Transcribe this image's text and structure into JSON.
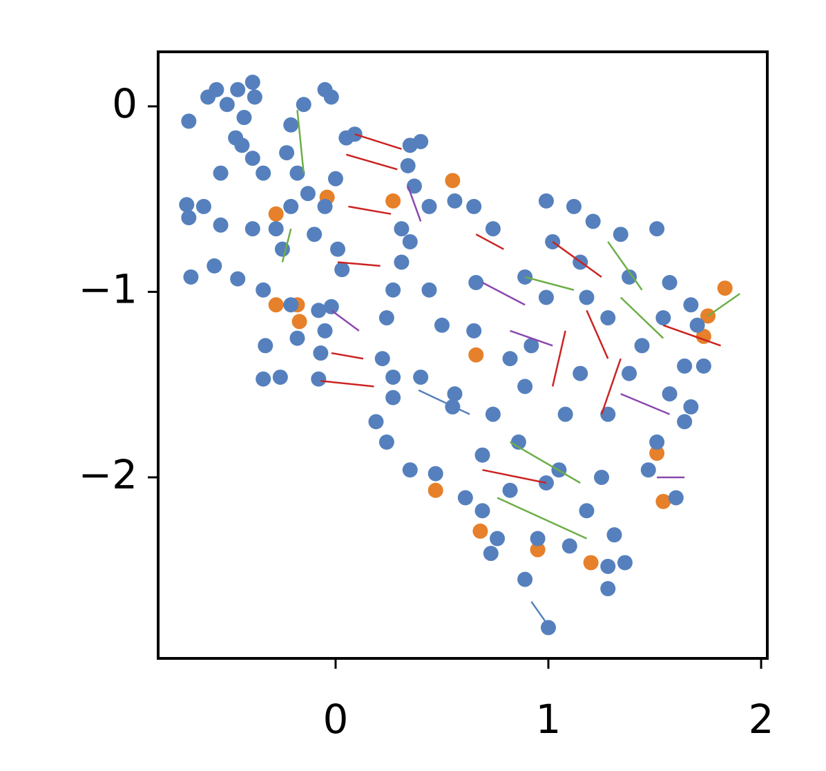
{
  "chart_data": {
    "type": "scatter",
    "xlim": [
      -0.834,
      2.029
    ],
    "ylim": [
      -2.976,
      0.294
    ],
    "xticks": [
      0,
      1,
      2
    ],
    "yticks": [
      {
        "value": -2,
        "label": "−2"
      },
      {
        "value": -1,
        "label": "−1"
      },
      0
    ],
    "series": [
      {
        "color": "#e6802a",
        "x": [
          -0.28,
          -0.04,
          0.55,
          0.27,
          -0.18,
          -0.28,
          -0.17,
          1.83,
          1.75,
          1.73,
          0.66,
          0.47,
          0.68,
          0.95,
          1.2,
          1.51,
          1.54
        ],
        "values": [
          -0.58,
          -0.49,
          -0.4,
          -0.51,
          -1.07,
          -1.07,
          -1.16,
          -0.98,
          -1.13,
          -1.24,
          -1.34,
          -2.07,
          -2.29,
          -2.39,
          -2.46,
          -1.87,
          -2.13
        ]
      },
      {
        "color": "#5580bd",
        "x": [
          -0.69,
          -0.6,
          -0.56,
          -0.51,
          -0.46,
          -0.39,
          -0.38,
          -0.43,
          -0.47,
          -0.44,
          -0.34,
          -0.54,
          -0.39,
          -0.7,
          -0.69,
          -0.62,
          -0.54,
          -0.39,
          -0.68,
          -0.57,
          -0.46,
          -0.21,
          -0.15,
          -0.05,
          -0.02,
          -0.23,
          -0.18,
          -0.13,
          -0.21,
          -0.28,
          -0.25,
          -0.1,
          -0.05,
          0.0,
          0.05,
          0.09,
          0.01,
          0.03,
          -0.34,
          -0.21,
          -0.08,
          -0.02,
          -0.05,
          -0.07,
          -0.18,
          -0.33,
          -0.34,
          -0.26,
          -0.08,
          0.35,
          0.4,
          0.34,
          0.37,
          0.44,
          0.56,
          0.65,
          0.74,
          0.31,
          0.35,
          0.31,
          0.44,
          0.27,
          0.24,
          0.22,
          0.27,
          0.27,
          0.4,
          0.5,
          0.65,
          0.56,
          0.55,
          0.74,
          0.19,
          0.24,
          0.35,
          0.47,
          0.61,
          0.66,
          0.99,
          1.12,
          1.21,
          1.34,
          1.51,
          1.02,
          1.15,
          1.38,
          1.57,
          1.67,
          1.7,
          0.89,
          0.99,
          1.18,
          1.28,
          1.44,
          1.54,
          1.64,
          1.73,
          0.92,
          1.15,
          1.38,
          1.57,
          1.67,
          0.89,
          1.08,
          1.28,
          1.51,
          1.64,
          0.86,
          1.05,
          1.25,
          1.47,
          1.6,
          0.69,
          0.82,
          0.99,
          1.18,
          1.31,
          1.28,
          1.28,
          1.36,
          0.69,
          0.76,
          0.89,
          0.73,
          0.95,
          1.1,
          1.0,
          0.82
        ],
        "values": [
          -0.08,
          0.05,
          0.09,
          0.01,
          0.09,
          0.13,
          0.05,
          -0.06,
          -0.17,
          -0.21,
          -0.36,
          -0.36,
          -0.28,
          -0.53,
          -0.6,
          -0.54,
          -0.64,
          -0.66,
          -0.92,
          -0.86,
          -0.93,
          -0.1,
          0.01,
          0.09,
          0.05,
          -0.25,
          -0.36,
          -0.47,
          -0.54,
          -0.66,
          -0.77,
          -0.69,
          -0.54,
          -0.39,
          -0.17,
          -0.15,
          -0.77,
          -0.88,
          -0.99,
          -1.07,
          -1.1,
          -1.08,
          -1.21,
          -1.33,
          -1.25,
          -1.29,
          -1.47,
          -1.46,
          -1.47,
          -0.21,
          -0.19,
          -0.32,
          -0.43,
          -0.54,
          -0.51,
          -0.54,
          -0.66,
          -0.66,
          -0.73,
          -0.84,
          -0.99,
          -0.99,
          -1.14,
          -1.36,
          -1.46,
          -1.57,
          -1.46,
          -1.18,
          -1.21,
          -1.55,
          -1.62,
          -1.66,
          -1.7,
          -1.81,
          -1.96,
          -1.98,
          -2.11,
          -0.95,
          -0.51,
          -0.54,
          -0.62,
          -0.69,
          -0.66,
          -0.73,
          -0.84,
          -0.92,
          -0.95,
          -1.07,
          -1.18,
          -0.92,
          -1.03,
          -1.03,
          -1.14,
          -1.29,
          -1.14,
          -1.4,
          -1.4,
          -1.29,
          -1.44,
          -1.44,
          -1.55,
          -1.62,
          -1.51,
          -1.66,
          -1.66,
          -1.81,
          -1.7,
          -1.81,
          -1.96,
          -2.0,
          -1.96,
          -2.11,
          -1.88,
          -2.07,
          -2.03,
          -2.18,
          -2.31,
          -2.48,
          -2.6,
          -2.46,
          -2.18,
          -2.33,
          -2.55,
          -2.41,
          -2.33,
          -2.37,
          -2.81,
          -1.36
        ]
      }
    ],
    "segments": [
      {
        "color": "#cc2222",
        "x0": [
          0.09,
          0.05,
          0.06,
          0.01,
          -0.02,
          -0.07,
          1.02,
          1.18,
          1.34,
          0.69,
          1.54,
          0.66,
          1.08
        ],
        "y0": [
          -0.15,
          -0.26,
          -0.54,
          -0.84,
          -1.33,
          -1.48,
          -0.73,
          -1.1,
          -1.36,
          -1.96,
          -1.18,
          -0.69,
          -1.21
        ],
        "x1": [
          0.31,
          0.29,
          0.26,
          0.21,
          0.13,
          0.18,
          1.25,
          1.28,
          1.25,
          0.99,
          1.81,
          0.79,
          1.02
        ],
        "y1": [
          -0.23,
          -0.34,
          -0.58,
          -0.86,
          -1.36,
          -1.51,
          -0.92,
          -1.36,
          -1.66,
          -2.03,
          -1.29,
          -0.77,
          -1.51
        ]
      },
      {
        "color": "#6cae47",
        "x0": [
          1.9,
          0.89,
          1.28,
          0.82,
          0.76,
          1.34,
          -0.18,
          -0.25
        ],
        "y0": [
          -1.01,
          -0.92,
          -0.73,
          -1.81,
          -2.11,
          -1.03,
          -0.02,
          -0.84
        ],
        "x1": [
          1.75,
          1.12,
          1.44,
          1.15,
          1.18,
          1.54,
          -0.15,
          -0.21
        ],
        "y1": [
          -1.13,
          -0.99,
          -0.99,
          -2.03,
          -2.33,
          -1.25,
          -0.36,
          -0.66
        ]
      },
      {
        "color": "#8a48ad",
        "x0": [
          0.69,
          0.82,
          1.34,
          -0.02,
          1.51,
          0.34
        ],
        "y0": [
          -0.95,
          -1.21,
          -1.55,
          -1.1,
          -2.0,
          -0.43
        ],
        "x1": [
          0.89,
          1.02,
          1.57,
          0.11,
          1.64,
          0.4
        ],
        "y1": [
          -1.07,
          -1.29,
          -1.66,
          -1.21,
          -2.0,
          -0.62
        ]
      },
      {
        "color": "#5580bd",
        "x0": [
          0.39,
          0.92
        ],
        "y0": [
          -1.53,
          -2.67
        ],
        "x1": [
          0.63,
          1.0
        ],
        "y1": [
          -1.66,
          -2.8
        ]
      }
    ]
  }
}
